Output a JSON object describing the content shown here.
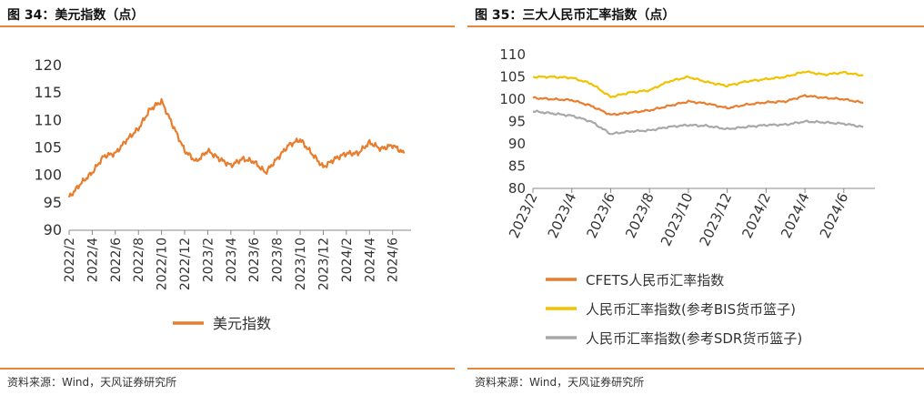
{
  "figures": [
    {
      "title": "图 34：美元指数（点）",
      "source": "资料来源：Wind，天风证券研究所"
    },
    {
      "title": "图 35：三大人民币汇率指数（点）",
      "source": "资料来源：Wind，天风证券研究所"
    }
  ],
  "chart_data": [
    {
      "type": "line",
      "title": "",
      "xlabel": "",
      "ylabel": "",
      "ylim": [
        90,
        120
      ],
      "yticks": [
        "120",
        "115",
        "110",
        "105",
        "100",
        "95",
        "90"
      ],
      "xticks": [
        "2022/2",
        "2022/4",
        "2022/6",
        "2022/8",
        "2022/10",
        "2022/12",
        "2023/2",
        "2023/4",
        "2023/6",
        "2023/8",
        "2023/10",
        "2023/12",
        "2024/2",
        "2024/4",
        "2024/6"
      ],
      "grid": false,
      "legend": "bottom",
      "series": [
        {
          "name": "美元指数",
          "color": "#e87d2e",
          "x": [
            "2022/2",
            "2022/3",
            "2022/4",
            "2022/5",
            "2022/6",
            "2022/7",
            "2022/8",
            "2022/9",
            "2022/10",
            "2022/11",
            "2022/12",
            "2023/1",
            "2023/2",
            "2023/3",
            "2023/4",
            "2023/5",
            "2023/6",
            "2023/7",
            "2023/8",
            "2023/9",
            "2023/10",
            "2023/11",
            "2023/12",
            "2024/1",
            "2024/2",
            "2024/3",
            "2024/4",
            "2024/5",
            "2024/6",
            "2024/7"
          ],
          "values": [
            96.0,
            98.5,
            100.5,
            103.5,
            104.0,
            106.5,
            108.5,
            112.0,
            113.5,
            109.0,
            104.5,
            102.5,
            104.5,
            103.0,
            101.8,
            103.0,
            102.5,
            100.5,
            103.0,
            105.5,
            106.5,
            104.0,
            101.5,
            103.0,
            104.0,
            104.0,
            106.0,
            104.8,
            105.5,
            104.0
          ]
        }
      ]
    },
    {
      "type": "line",
      "title": "",
      "xlabel": "",
      "ylabel": "",
      "ylim": [
        80,
        110
      ],
      "yticks": [
        "110",
        "105",
        "100",
        "95",
        "90",
        "85",
        "80"
      ],
      "xticks": [
        "2023/2",
        "2023/4",
        "2023/6",
        "2023/8",
        "2023/10",
        "2023/12",
        "2024/2",
        "2024/4",
        "2024/6"
      ],
      "grid": false,
      "legend": "bottom",
      "series": [
        {
          "name": "CFETS人民币汇率指数",
          "color": "#e87d2e",
          "x": [
            "2023/2",
            "2023/3",
            "2023/4",
            "2023/5",
            "2023/6",
            "2023/7",
            "2023/8",
            "2023/9",
            "2023/10",
            "2023/11",
            "2023/12",
            "2024/1",
            "2024/2",
            "2024/3",
            "2024/4",
            "2024/5",
            "2024/6",
            "2024/7"
          ],
          "values": [
            100.3,
            100.0,
            99.8,
            98.5,
            96.5,
            97.0,
            97.5,
            98.5,
            99.5,
            99.0,
            98.0,
            98.8,
            99.3,
            99.5,
            100.8,
            100.3,
            100.0,
            99.2
          ]
        },
        {
          "name": "人民币汇率指数(参考BIS货币篮子)",
          "color": "#f2c200",
          "x": [
            "2023/2",
            "2023/3",
            "2023/4",
            "2023/5",
            "2023/6",
            "2023/7",
            "2023/8",
            "2023/9",
            "2023/10",
            "2023/11",
            "2023/12",
            "2024/1",
            "2024/2",
            "2024/3",
            "2024/4",
            "2024/5",
            "2024/6",
            "2024/7"
          ],
          "values": [
            105.0,
            105.0,
            104.8,
            103.5,
            100.5,
            101.5,
            102.0,
            104.0,
            105.0,
            103.8,
            103.0,
            104.0,
            104.5,
            105.0,
            106.2,
            105.5,
            106.0,
            105.3
          ]
        },
        {
          "name": "人民币汇率指数(参考SDR货币篮子)",
          "color": "#a8a8a8",
          "x": [
            "2023/2",
            "2023/3",
            "2023/4",
            "2023/5",
            "2023/6",
            "2023/7",
            "2023/8",
            "2023/9",
            "2023/10",
            "2023/11",
            "2023/12",
            "2024/1",
            "2024/2",
            "2024/3",
            "2024/4",
            "2024/5",
            "2024/6",
            "2024/7"
          ],
          "values": [
            97.3,
            96.8,
            96.3,
            95.0,
            92.2,
            92.8,
            93.0,
            93.8,
            94.2,
            94.0,
            93.3,
            93.8,
            94.2,
            94.3,
            95.0,
            94.8,
            94.5,
            93.8
          ]
        }
      ]
    }
  ]
}
